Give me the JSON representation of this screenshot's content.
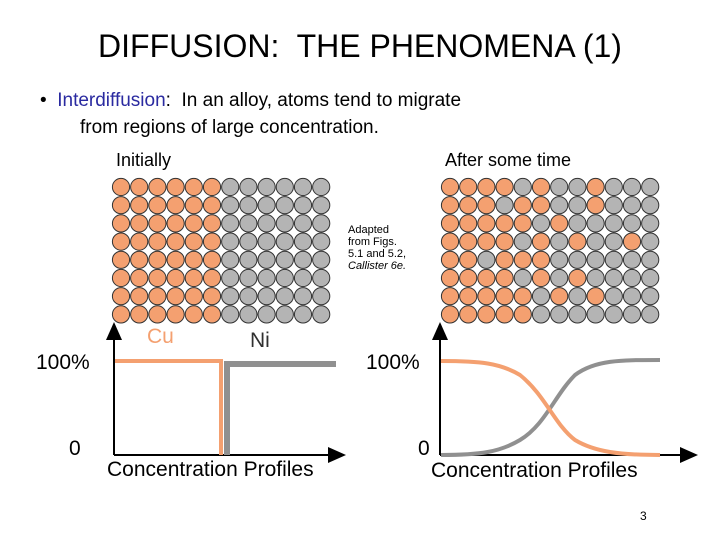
{
  "slide": {
    "title": "DIFFUSION:  THE PHENOMENA (1)",
    "bullet_marker": "•",
    "bullet_term": "Interdiffusion",
    "bullet_rest_line1": ":  In an alloy, atoms tend to migrate",
    "bullet_line2": "from regions of large concentration.",
    "label_initially": "Initially",
    "label_after": "After some time",
    "caption_line1": "Adapted",
    "caption_line2": "from Figs.",
    "caption_line3": "5.1 and 5.2,",
    "caption_line4": "Callister 6e.",
    "page_number": "3"
  },
  "colors": {
    "cu": "#f4a070",
    "ni": "#b4b4b4",
    "cu_curve": "#f4a070",
    "ni_curve": "#909090",
    "term": "#2a2aa0"
  },
  "lattice_initial": [
    "CCCCCCNNNNNN",
    "CCCCCCNNNNNN",
    "CCCCCCNNNNNN",
    "CCCCCCNNNNNN",
    "CCCCCCNNNNNN",
    "CCCCCCNNNNNN",
    "CCCCCCNNNNNN",
    "CCCCCCNNNNNN"
  ],
  "lattice_after": [
    "CCCCNCNNCNNN",
    "CCCNCCNNCNNN",
    "CCCCCNCNNNNN",
    "CCCCNCNCNNCN",
    "CCNCCCNNNNNN",
    "CCCCNCNCNNNN",
    "CCCCCNCNCNNN",
    "CCCCCNNNNNNN"
  ],
  "graph_initial": {
    "y_top_label": "100%",
    "y_bottom_label": "0",
    "xlabel": "Concentration Profiles",
    "cu_label": "Cu",
    "ni_label": "Ni"
  },
  "graph_after": {
    "y_top_label": "100%",
    "y_bottom_label": "0",
    "xlabel": "Concentration Profiles"
  }
}
